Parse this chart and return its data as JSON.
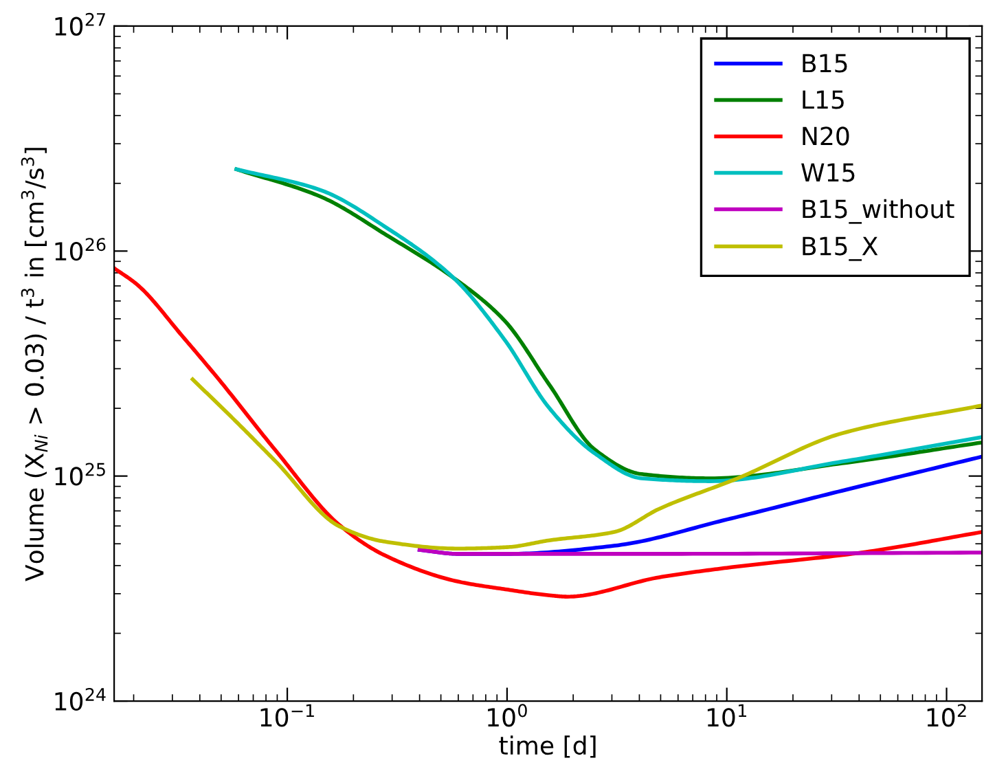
{
  "chart_data": {
    "type": "line",
    "xlabel": "time [d]",
    "ylabel": "Volume (X$_{Ni}$ > 0.03) / t$^{3}$ in [cm$^{3}$/s$^{3}$]",
    "log": "xy",
    "xlim": [
      0.0163,
      145
    ],
    "ylim": [
      1e+24,
      1e+27
    ],
    "xticks": [
      {
        "value": 0.1,
        "label": "10$^{−1}$"
      },
      {
        "value": 1,
        "label": "10$^{0}$"
      },
      {
        "value": 10,
        "label": "10$^{1}$"
      },
      {
        "value": 100,
        "label": "10$^{2}$"
      }
    ],
    "yticks": [
      {
        "value": 1e+24,
        "label": "10$^{24}$"
      },
      {
        "value": 1e+25,
        "label": "10$^{25}$"
      },
      {
        "value": 1e+26,
        "label": "10$^{26}$"
      },
      {
        "value": 1e+27,
        "label": "10$^{27}$"
      }
    ],
    "grid": false,
    "legend": "top right",
    "line_style": "solid",
    "marker": "none",
    "series": [
      {
        "name": "B15",
        "color": "#0000ff",
        "x": [
          0.4,
          0.596,
          1.0,
          3.07,
          10,
          33.5,
          145
        ],
        "values": [
          4.7e+24,
          4.51e+24,
          4.51e+24,
          4.9e+24,
          6.41e+24,
          8.61e+24,
          1.22e+25
        ]
      },
      {
        "name": "L15",
        "color": "#008000",
        "x": [
          0.0587,
          0.141,
          0.29,
          0.57,
          0.972,
          1.56,
          2.51,
          4.1,
          8.41,
          33.5,
          145
        ],
        "values": [
          2.31e+26,
          1.75e+26,
          1.16e+26,
          7.61e+25,
          4.92e+25,
          2.54e+25,
          1.31e+25,
          1.02e+25,
          9.77e+24,
          1.14e+25,
          1.41e+25
        ]
      },
      {
        "name": "N20",
        "color": "#ff0000",
        "x": [
          0.0163,
          0.0208,
          0.0335,
          0.0494,
          0.0879,
          0.173,
          0.278,
          0.596,
          1.0,
          1.56,
          1.88,
          4.94,
          10,
          41.0,
          145
        ],
        "values": [
          8.39e+25,
          7.08e+25,
          4.16e+25,
          2.65e+25,
          1.31e+25,
          6.05e+24,
          4.44e+24,
          3.4e+24,
          3.13e+24,
          2.95e+24,
          2.91e+24,
          3.55e+24,
          3.91e+24,
          4.57e+24,
          5.64e+24
        ]
      },
      {
        "name": "W15",
        "color": "#00bfbf",
        "x": [
          0.0587,
          0.141,
          0.29,
          0.57,
          0.972,
          1.56,
          2.51,
          4.1,
          8.41,
          33.5,
          145
        ],
        "values": [
          2.31e+26,
          1.87e+26,
          1.25e+26,
          7.61e+25,
          4.05e+25,
          2e+25,
          1.26e+25,
          9.77e+24,
          9.49e+24,
          1.16e+25,
          1.49e+25
        ]
      },
      {
        "name": "B15_without",
        "color": "#bf00bf",
        "x": [
          0.4,
          0.596,
          1.0,
          4.94,
          145
        ],
        "values": [
          4.7e+24,
          4.51e+24,
          4.51e+24,
          4.51e+24,
          4.57e+24
        ]
      },
      {
        "name": "B15_X",
        "color": "#bfbf00",
        "x": [
          0.0371,
          0.057,
          0.0879,
          0.173,
          0.278,
          0.596,
          1.0,
          1.56,
          3.07,
          4.94,
          11.2,
          33.5,
          145
        ],
        "values": [
          2.69e+25,
          1.79e+25,
          1.17e+25,
          5.97e+24,
          5.11e+24,
          4.76e+24,
          4.83e+24,
          5.18e+24,
          5.64e+24,
          7.16e+24,
          9.77e+24,
          1.55e+25,
          2.06e+25
        ]
      }
    ]
  }
}
